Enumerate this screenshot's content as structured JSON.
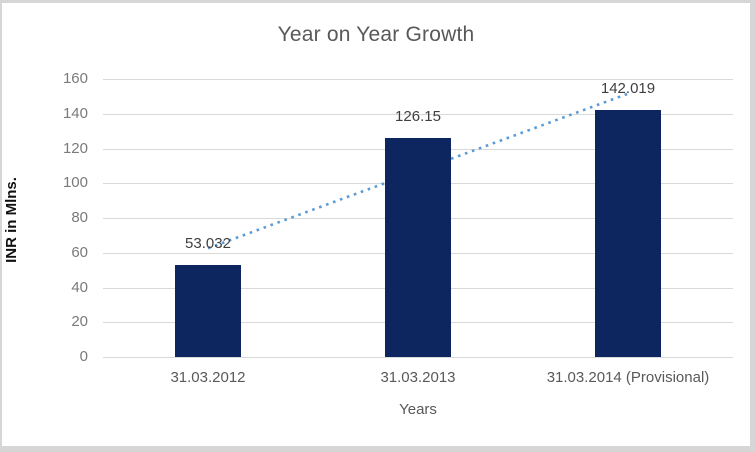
{
  "window": {
    "background": "#ffffff",
    "border_color": "#d6d6d6"
  },
  "chart_data": {
    "type": "bar",
    "title": "Year on Year Growth",
    "xlabel": "Years",
    "ylabel": "INR in Mlns.",
    "categories": [
      "31.03.2012",
      "31.03.2013",
      "31.03.2014 (Provisional)"
    ],
    "values": [
      53.032,
      126.15,
      142.019
    ],
    "data_labels": [
      "53.032",
      "126.15",
      "142.019"
    ],
    "ylim": [
      0,
      160
    ],
    "ytick_step": 20,
    "yticks": [
      0,
      20,
      40,
      60,
      80,
      100,
      120,
      140,
      160
    ],
    "grid": true,
    "legend": "none",
    "trendline": {
      "type": "linear",
      "style": "dotted",
      "color": "#5b9bd5"
    },
    "colors": {
      "bar": "#0e2660",
      "gridline": "#d9d9d9",
      "axis_line": "#d9d9d9",
      "title_text": "#595959",
      "tick_text": "#7a7a7a",
      "data_label_text": "#3f3f3f",
      "category_text": "#595959",
      "xlabel_text": "#595959",
      "ylabel_text": "#111111"
    }
  }
}
